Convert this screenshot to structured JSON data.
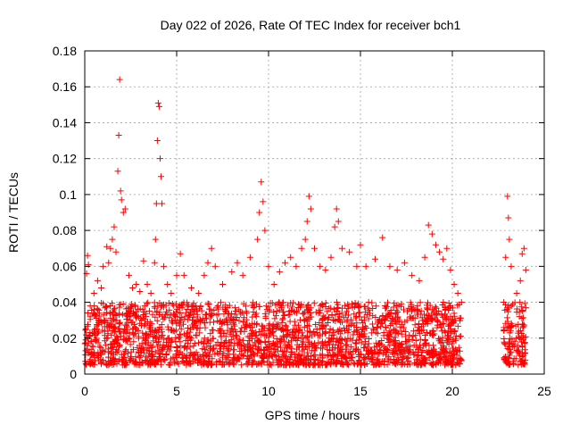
{
  "chart_data": {
    "type": "scatter",
    "title": "Day 022 of 2026, Rate Of TEC Index for receiver bch1",
    "xlabel": "GPS time / hours",
    "ylabel": "ROTI / TECUs",
    "xlim": [
      0,
      25
    ],
    "ylim": [
      0,
      0.18
    ],
    "x_ticks": [
      "0",
      "5",
      "10",
      "15",
      "20",
      "25"
    ],
    "y_ticks": [
      "0",
      "0.02",
      "0.04",
      "0.06",
      "0.08",
      "0.1",
      "0.12",
      "0.14",
      "0.16",
      "0.18"
    ],
    "grid": true,
    "marker": "plus",
    "series_color": "#ff0000",
    "points": [
      [
        0.05,
        0.013
      ],
      [
        0.1,
        0.056
      ],
      [
        0.15,
        0.066
      ],
      [
        0.2,
        0.061
      ],
      [
        0.3,
        0.038
      ],
      [
        0.5,
        0.045
      ],
      [
        0.7,
        0.052
      ],
      [
        0.9,
        0.048
      ],
      [
        1.0,
        0.06
      ],
      [
        1.2,
        0.071
      ],
      [
        1.3,
        0.062
      ],
      [
        1.4,
        0.07
      ],
      [
        1.5,
        0.075
      ],
      [
        1.6,
        0.082
      ],
      [
        1.7,
        0.068
      ],
      [
        1.8,
        0.113
      ],
      [
        1.85,
        0.133
      ],
      [
        1.9,
        0.164
      ],
      [
        1.95,
        0.102
      ],
      [
        2.0,
        0.097
      ],
      [
        2.1,
        0.09
      ],
      [
        2.2,
        0.092
      ],
      [
        2.4,
        0.055
      ],
      [
        2.6,
        0.048
      ],
      [
        2.8,
        0.05
      ],
      [
        3.0,
        0.046
      ],
      [
        3.2,
        0.063
      ],
      [
        3.4,
        0.05
      ],
      [
        3.6,
        0.045
      ],
      [
        3.8,
        0.062
      ],
      [
        3.85,
        0.075
      ],
      [
        3.9,
        0.095
      ],
      [
        3.95,
        0.13
      ],
      [
        4.0,
        0.151
      ],
      [
        4.05,
        0.149
      ],
      [
        4.1,
        0.12
      ],
      [
        4.15,
        0.11
      ],
      [
        4.2,
        0.095
      ],
      [
        4.3,
        0.06
      ],
      [
        4.5,
        0.05
      ],
      [
        4.7,
        0.045
      ],
      [
        5.0,
        0.055
      ],
      [
        5.2,
        0.067
      ],
      [
        5.4,
        0.055
      ],
      [
        5.8,
        0.048
      ],
      [
        6.2,
        0.045
      ],
      [
        6.5,
        0.055
      ],
      [
        6.7,
        0.062
      ],
      [
        6.9,
        0.07
      ],
      [
        7.1,
        0.06
      ],
      [
        7.5,
        0.05
      ],
      [
        8.0,
        0.057
      ],
      [
        8.3,
        0.062
      ],
      [
        8.6,
        0.055
      ],
      [
        9.0,
        0.065
      ],
      [
        9.4,
        0.075
      ],
      [
        9.5,
        0.09
      ],
      [
        9.6,
        0.107
      ],
      [
        9.7,
        0.096
      ],
      [
        9.8,
        0.08
      ],
      [
        10.0,
        0.06
      ],
      [
        10.3,
        0.05
      ],
      [
        10.6,
        0.057
      ],
      [
        10.9,
        0.062
      ],
      [
        11.2,
        0.065
      ],
      [
        11.5,
        0.06
      ],
      [
        11.8,
        0.07
      ],
      [
        12.0,
        0.075
      ],
      [
        12.1,
        0.085
      ],
      [
        12.2,
        0.099
      ],
      [
        12.3,
        0.092
      ],
      [
        12.5,
        0.07
      ],
      [
        12.8,
        0.06
      ],
      [
        13.1,
        0.058
      ],
      [
        13.4,
        0.065
      ],
      [
        13.6,
        0.082
      ],
      [
        13.7,
        0.092
      ],
      [
        13.8,
        0.085
      ],
      [
        14.0,
        0.07
      ],
      [
        14.4,
        0.068
      ],
      [
        14.8,
        0.06
      ],
      [
        15.0,
        0.072
      ],
      [
        15.3,
        0.06
      ],
      [
        15.8,
        0.064
      ],
      [
        16.2,
        0.076
      ],
      [
        16.6,
        0.06
      ],
      [
        17.0,
        0.058
      ],
      [
        17.4,
        0.062
      ],
      [
        17.8,
        0.055
      ],
      [
        18.2,
        0.052
      ],
      [
        18.5,
        0.065
      ],
      [
        18.7,
        0.083
      ],
      [
        18.9,
        0.078
      ],
      [
        19.1,
        0.072
      ],
      [
        19.3,
        0.068
      ],
      [
        19.5,
        0.064
      ],
      [
        19.7,
        0.07
      ],
      [
        19.9,
        0.058
      ],
      [
        20.1,
        0.05
      ],
      [
        20.3,
        0.045
      ],
      [
        20.5,
        0.04
      ],
      [
        22.8,
        0.04
      ],
      [
        22.9,
        0.065
      ],
      [
        23.0,
        0.099
      ],
      [
        23.05,
        0.087
      ],
      [
        23.1,
        0.075
      ],
      [
        23.2,
        0.06
      ],
      [
        23.5,
        0.045
      ],
      [
        23.7,
        0.052
      ],
      [
        23.8,
        0.067
      ],
      [
        23.9,
        0.07
      ],
      [
        24.0,
        0.058
      ]
    ],
    "dense_band": {
      "segments": [
        [
          0,
          20.5
        ],
        [
          22.8,
          24.0
        ]
      ],
      "y_range": [
        0.005,
        0.04
      ]
    }
  }
}
